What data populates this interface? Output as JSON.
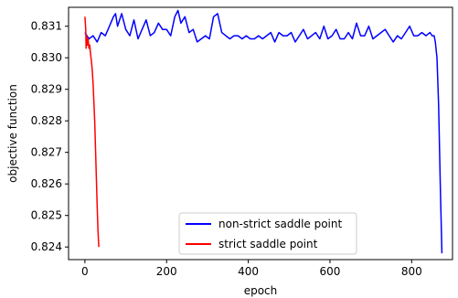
{
  "chart_data": {
    "type": "line",
    "title": "",
    "xlabel": "epoch",
    "ylabel": "objective function",
    "xlim": [
      -40,
      900
    ],
    "ylim": [
      0.8236,
      0.8316
    ],
    "x_ticks": [
      0,
      200,
      400,
      600,
      800
    ],
    "x_tick_labels": [
      "0",
      "200",
      "400",
      "600",
      "800"
    ],
    "y_ticks": [
      0.824,
      0.825,
      0.826,
      0.827,
      0.828,
      0.829,
      0.83,
      0.831
    ],
    "y_tick_labels": [
      "0.824",
      "0.825",
      "0.826",
      "0.827",
      "0.828",
      "0.829",
      "0.830",
      "0.831"
    ],
    "grid": false,
    "legend_position": "lower-center",
    "series": [
      {
        "name": "non-strict saddle point",
        "color": "#0000ff",
        "x": [
          0,
          10,
          20,
          30,
          40,
          50,
          60,
          70,
          75,
          80,
          90,
          100,
          110,
          120,
          130,
          140,
          150,
          160,
          170,
          180,
          190,
          200,
          210,
          220,
          228,
          235,
          245,
          255,
          265,
          275,
          285,
          295,
          305,
          315,
          325,
          335,
          345,
          355,
          365,
          375,
          385,
          395,
          405,
          415,
          425,
          435,
          445,
          455,
          465,
          475,
          485,
          495,
          505,
          515,
          525,
          535,
          545,
          555,
          565,
          575,
          585,
          595,
          605,
          615,
          625,
          635,
          645,
          655,
          665,
          675,
          685,
          695,
          705,
          715,
          725,
          735,
          745,
          755,
          765,
          775,
          785,
          795,
          805,
          815,
          825,
          835,
          845,
          850,
          855,
          858,
          862,
          866,
          870,
          874
        ],
        "y": [
          0.8308,
          0.8306,
          0.8307,
          0.8305,
          0.8308,
          0.8307,
          0.831,
          0.8313,
          0.8314,
          0.831,
          0.8314,
          0.8309,
          0.8307,
          0.8312,
          0.8306,
          0.8309,
          0.8312,
          0.8307,
          0.8308,
          0.8311,
          0.8309,
          0.8309,
          0.8307,
          0.8313,
          0.8315,
          0.8311,
          0.8313,
          0.8308,
          0.8309,
          0.8305,
          0.8306,
          0.8307,
          0.8306,
          0.8313,
          0.8314,
          0.8308,
          0.8307,
          0.8306,
          0.8307,
          0.8307,
          0.8306,
          0.8307,
          0.8306,
          0.8306,
          0.8307,
          0.8306,
          0.8307,
          0.8308,
          0.8305,
          0.8308,
          0.8307,
          0.8307,
          0.8308,
          0.8305,
          0.8307,
          0.8309,
          0.8306,
          0.8307,
          0.8308,
          0.8306,
          0.831,
          0.8306,
          0.8307,
          0.8309,
          0.8306,
          0.8306,
          0.8308,
          0.8306,
          0.8311,
          0.8307,
          0.8307,
          0.831,
          0.8306,
          0.8307,
          0.8308,
          0.8309,
          0.8307,
          0.8305,
          0.8307,
          0.8306,
          0.8308,
          0.831,
          0.8307,
          0.8307,
          0.8308,
          0.8307,
          0.8308,
          0.8307,
          0.8307,
          0.8305,
          0.83,
          0.8285,
          0.826,
          0.8238
        ]
      },
      {
        "name": "strict saddle point",
        "color": "#ff0000",
        "x": [
          0,
          2,
          3,
          4,
          5,
          6,
          7,
          8,
          10,
          12,
          14,
          16,
          18,
          20,
          22,
          24,
          26,
          28,
          30,
          32,
          34
        ],
        "y": [
          0.8313,
          0.8309,
          0.8303,
          0.8307,
          0.8305,
          0.8304,
          0.8305,
          0.8306,
          0.8303,
          0.8304,
          0.8301,
          0.8299,
          0.8296,
          0.8292,
          0.8286,
          0.828,
          0.8271,
          0.8262,
          0.8253,
          0.8245,
          0.824
        ]
      }
    ]
  }
}
